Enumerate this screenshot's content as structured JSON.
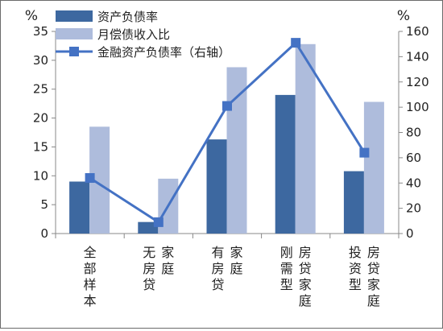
{
  "chart_data": {
    "type": "bar",
    "categories": [
      [
        "全部样本"
      ],
      [
        "无房贷",
        "家庭"
      ],
      [
        "有房贷",
        "家庭"
      ],
      [
        "刚需型",
        "房贷家庭"
      ],
      [
        "投资型",
        "房贷家庭"
      ]
    ],
    "left_axis": {
      "unit": "%",
      "ylim": [
        0,
        35
      ],
      "ticks": [
        "0",
        "5",
        "10",
        "15",
        "20",
        "25",
        "30",
        "35"
      ]
    },
    "right_axis": {
      "unit": "%",
      "ylim": [
        0,
        160
      ],
      "ticks": [
        "0",
        "20",
        "40",
        "60",
        "80",
        "100",
        "120",
        "140",
        "160"
      ]
    },
    "series": [
      {
        "name": "资产负债率",
        "type": "bar",
        "axis": "left",
        "color": "#3D68A0",
        "values": [
          9.0,
          2.0,
          16.3,
          24.0,
          10.8
        ]
      },
      {
        "name": "月偿债收入比",
        "type": "bar",
        "axis": "left",
        "color": "#AEBCDC",
        "values": [
          18.5,
          9.5,
          28.8,
          32.8,
          22.8
        ]
      },
      {
        "name": "金融资产负债率（右轴）",
        "type": "line",
        "axis": "right",
        "color": "#4472C4",
        "values": [
          44,
          9,
          101,
          151,
          64
        ]
      }
    ],
    "grid": false,
    "legend_position": "top-left"
  }
}
